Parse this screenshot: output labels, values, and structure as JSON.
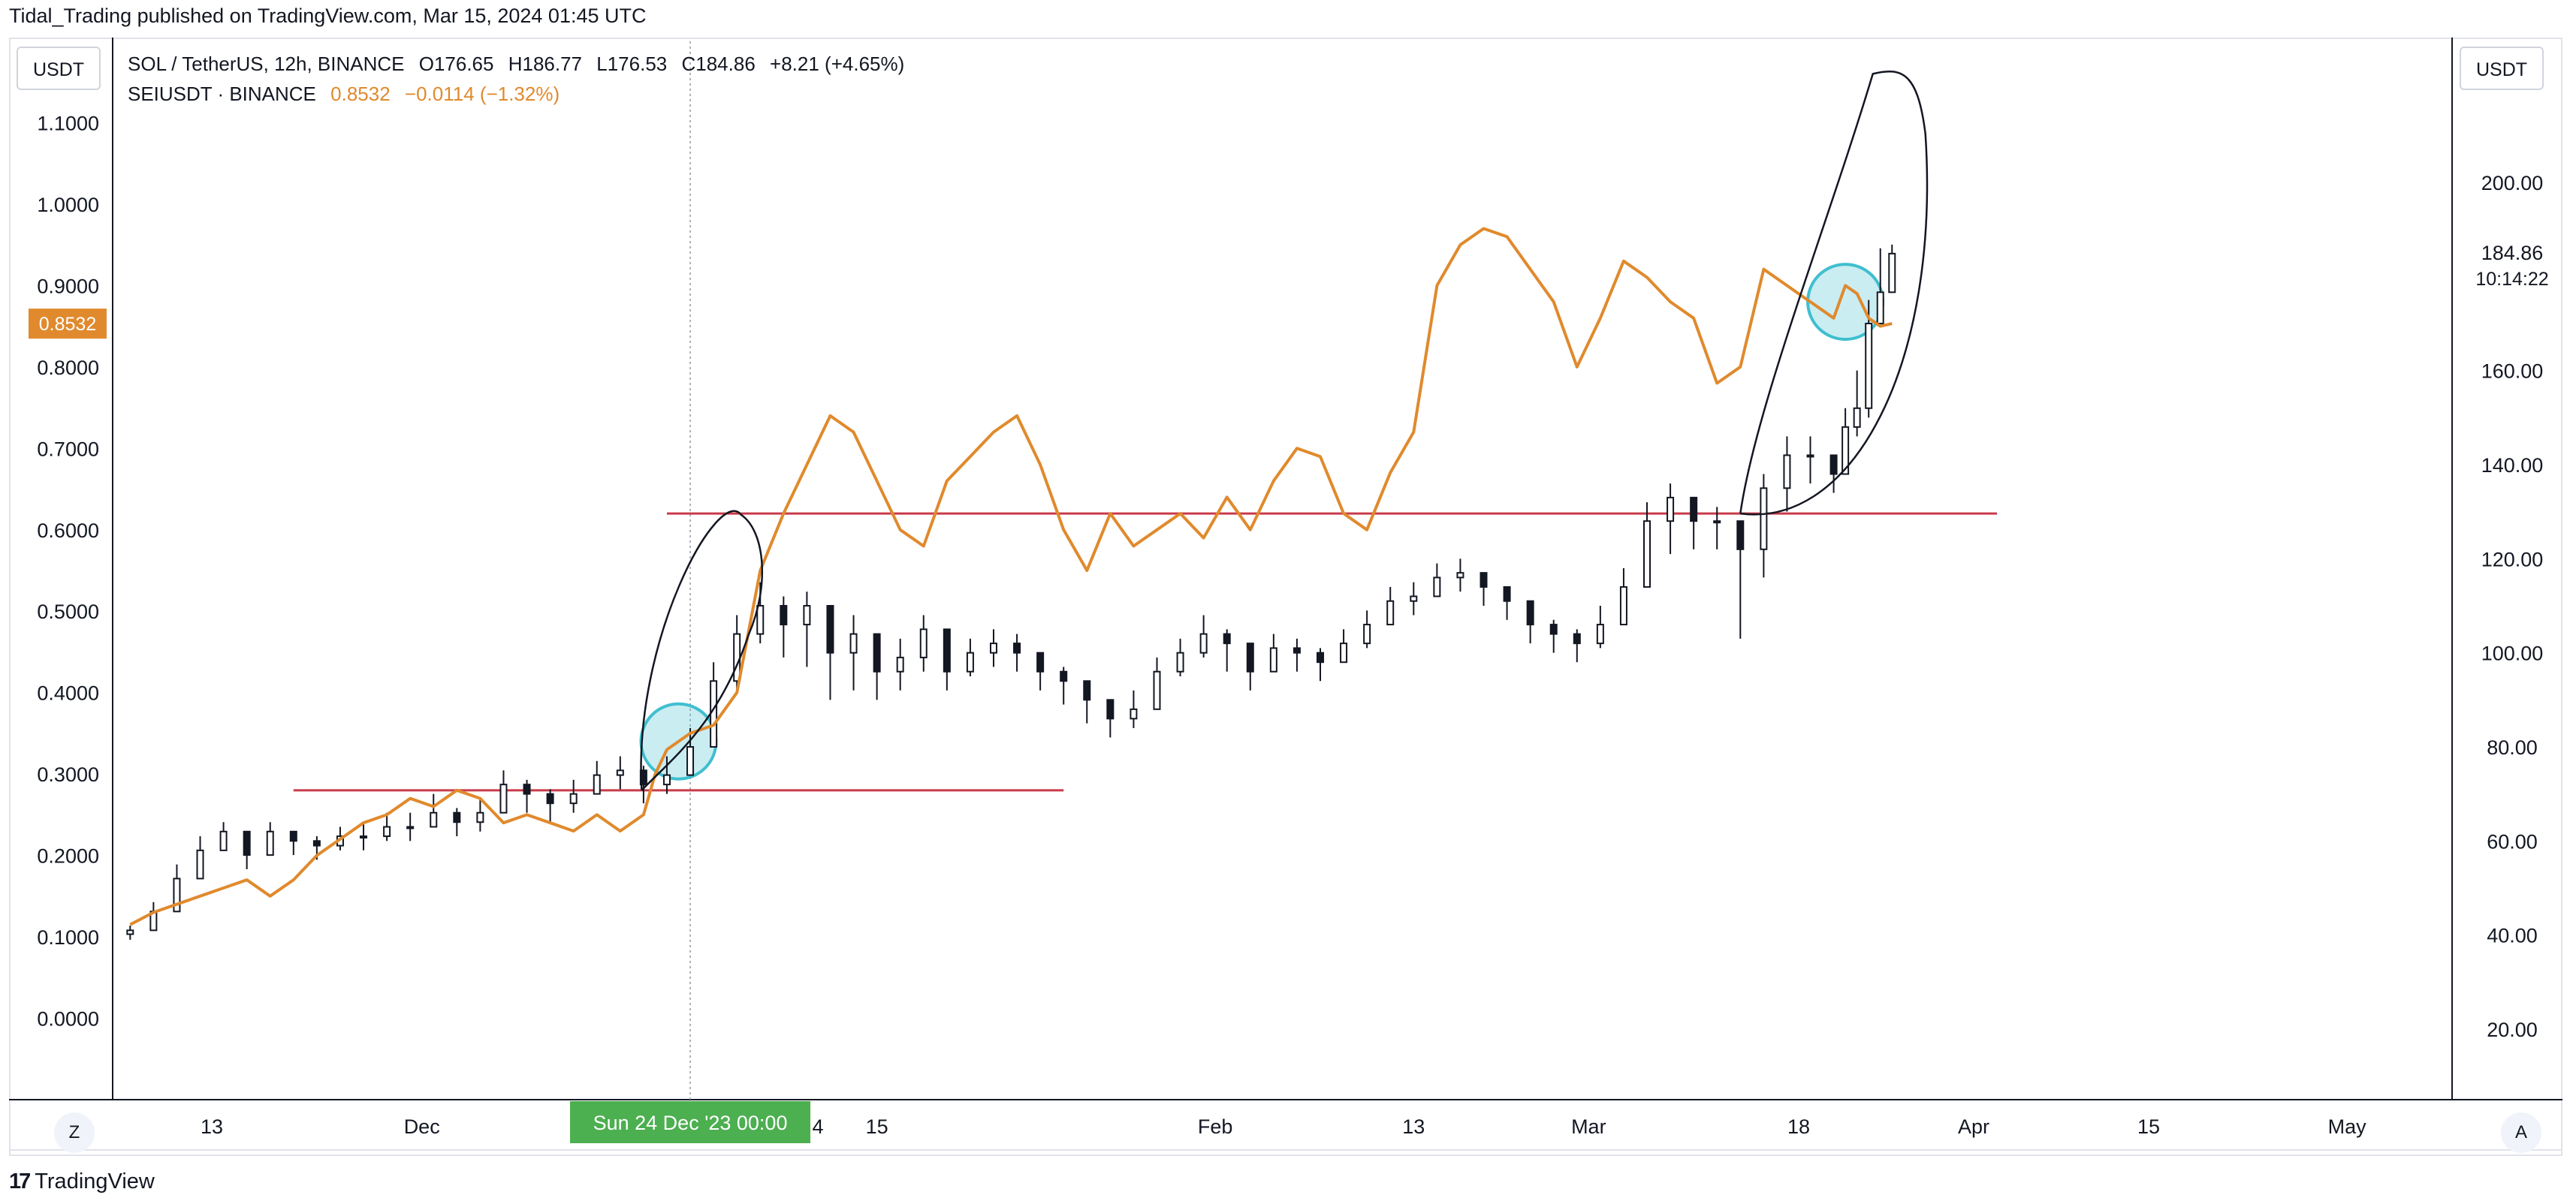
{
  "header": {
    "published_line": "Tidal_Trading published on TradingView.com, Mar 15, 2024 01:45 UTC"
  },
  "toolbar": {
    "left_unit": "USDT",
    "right_unit": "USDT",
    "z_button": "Z",
    "a_button": "A"
  },
  "legend": {
    "main": {
      "symbol": "SOL / TetherUS, 12h, BINANCE",
      "open": "O176.65",
      "high": "H186.77",
      "low": "L176.53",
      "close": "C184.86",
      "change": "+8.21 (+4.65%)"
    },
    "compare": {
      "symbol": "SEIUSDT · BINANCE",
      "value": "0.8532",
      "change": "−0.0114 (−1.32%)"
    }
  },
  "footer": {
    "brand": "TradingView",
    "brand_glyph": "17"
  },
  "colors": {
    "sei_line": "#e08a2d",
    "candle": "#131722",
    "support_line": "#c93b4a",
    "circle": "#3fbfcf",
    "crosshair_label": "#4caf50",
    "sei_price_label": "#e08a2d"
  },
  "chart_data": {
    "type": "line",
    "title": "",
    "left_axis": {
      "unit": "USDT",
      "ticks": [
        "0.0000",
        "0.1000",
        "0.2000",
        "0.3000",
        "0.4000",
        "0.5000",
        "0.6000",
        "0.7000",
        "0.8000",
        "0.9000",
        "1.0000",
        "1.1000"
      ],
      "tick_values": [
        0,
        0.1,
        0.2,
        0.3,
        0.4,
        0.5,
        0.6,
        0.7,
        0.8,
        0.9,
        1.0,
        1.1
      ],
      "ylim": [
        -0.1,
        1.2
      ]
    },
    "right_axis": {
      "unit": "USDT",
      "ticks": [
        "20.00",
        "40.00",
        "60.00",
        "80.00",
        "100.00",
        "120.00",
        "140.00",
        "160.00",
        "200.00"
      ],
      "tick_values": [
        20,
        40,
        60,
        80,
        100,
        120,
        140,
        160,
        200
      ],
      "ylim": [
        5,
        230
      ]
    },
    "x_axis": {
      "labels": [
        "13",
        "Dec",
        "15",
        "Feb",
        "13",
        "Mar",
        "18",
        "Apr",
        "15",
        "May"
      ],
      "label_days": [
        7,
        25,
        64,
        93,
        110,
        125,
        143,
        158,
        173,
        190
      ],
      "xlim": [
        -1.5,
        199
      ],
      "day0": "Nov 6 2023"
    },
    "crosshair": {
      "label": "Sun 24 Dec '23   00:00",
      "day": 48,
      "partial_tail": "4"
    },
    "price_labels": {
      "sei_current": "0.8532",
      "sol_current": "184.86",
      "sol_countdown": "10:14:22"
    },
    "series": [
      {
        "name": "SEIUSDT · BINANCE",
        "axis": "left",
        "x": [
          0,
          2,
          4,
          6,
          8,
          10,
          12,
          14,
          16,
          18,
          20,
          22,
          24,
          26,
          28,
          30,
          32,
          34,
          36,
          38,
          40,
          42,
          44,
          45,
          46,
          48,
          50,
          52,
          54,
          56,
          58,
          60,
          62,
          64,
          66,
          68,
          70,
          72,
          74,
          76,
          78,
          80,
          82,
          84,
          86,
          88,
          90,
          92,
          94,
          96,
          98,
          100,
          102,
          104,
          106,
          108,
          110,
          112,
          114,
          116,
          118,
          120,
          122,
          124,
          126,
          128,
          130,
          132,
          134,
          136,
          138,
          140,
          142,
          144,
          146,
          147,
          148,
          149,
          150,
          151
        ],
        "y": [
          0.115,
          0.13,
          0.14,
          0.15,
          0.16,
          0.17,
          0.15,
          0.17,
          0.2,
          0.22,
          0.24,
          0.25,
          0.27,
          0.26,
          0.28,
          0.27,
          0.24,
          0.25,
          0.24,
          0.23,
          0.25,
          0.23,
          0.25,
          0.3,
          0.33,
          0.35,
          0.36,
          0.4,
          0.55,
          0.62,
          0.68,
          0.74,
          0.72,
          0.66,
          0.6,
          0.58,
          0.66,
          0.69,
          0.72,
          0.74,
          0.68,
          0.6,
          0.55,
          0.62,
          0.58,
          0.6,
          0.62,
          0.59,
          0.64,
          0.6,
          0.66,
          0.7,
          0.69,
          0.62,
          0.6,
          0.67,
          0.72,
          0.9,
          0.95,
          0.97,
          0.96,
          0.92,
          0.88,
          0.8,
          0.86,
          0.93,
          0.91,
          0.88,
          0.86,
          0.78,
          0.8,
          0.92,
          0.9,
          0.88,
          0.86,
          0.9,
          0.89,
          0.86,
          0.85,
          0.8532
        ]
      },
      {
        "name": "SOL / TetherUS, 12h, BINANCE",
        "axis": "right",
        "type": "candlestick",
        "x": [
          0,
          2,
          4,
          6,
          8,
          10,
          12,
          14,
          16,
          18,
          20,
          22,
          24,
          26,
          28,
          30,
          32,
          34,
          36,
          38,
          40,
          42,
          44,
          46,
          48,
          50,
          52,
          54,
          56,
          58,
          60,
          62,
          64,
          66,
          68,
          70,
          72,
          74,
          76,
          78,
          80,
          82,
          84,
          86,
          88,
          90,
          92,
          94,
          96,
          98,
          100,
          102,
          104,
          106,
          108,
          110,
          112,
          114,
          116,
          118,
          120,
          122,
          124,
          126,
          128,
          130,
          132,
          134,
          136,
          138,
          140,
          142,
          144,
          146,
          147,
          148,
          149,
          150,
          151
        ],
        "close": [
          41,
          45,
          52,
          58,
          62,
          57,
          62,
          60,
          59,
          61,
          61,
          63,
          63,
          66,
          64,
          66,
          72,
          70,
          68,
          70,
          74,
          75,
          72,
          74,
          80,
          94,
          104,
          110,
          106,
          110,
          100,
          104,
          96,
          99,
          105,
          96,
          100,
          102,
          100,
          96,
          94,
          90,
          86,
          88,
          96,
          100,
          104,
          102,
          96,
          101,
          100,
          98,
          102,
          106,
          111,
          112,
          116,
          117,
          114,
          111,
          106,
          104,
          102,
          106,
          114,
          128,
          133,
          128,
          128,
          122,
          135,
          142,
          142,
          138,
          148,
          152,
          170,
          176.65,
          184.86
        ],
        "high": [
          42,
          47,
          55,
          61,
          64,
          60,
          64,
          62,
          61,
          63,
          64,
          66,
          66,
          70,
          67,
          69,
          75,
          73,
          71,
          73,
          77,
          78,
          76,
          78,
          84,
          98,
          108,
          115,
          112,
          113,
          103,
          108,
          100,
          103,
          108,
          100,
          103,
          105,
          104,
          99,
          97,
          93,
          90,
          92,
          99,
          103,
          108,
          105,
          99,
          104,
          103,
          101,
          105,
          109,
          114,
          115,
          119,
          120,
          117,
          114,
          109,
          107,
          105,
          110,
          118,
          132,
          136,
          131,
          131,
          126,
          138,
          146,
          146,
          142,
          152,
          160,
          175,
          186,
          186.77
        ],
        "low": [
          39,
          42,
          49,
          55,
          58,
          54,
          58,
          57,
          56,
          58,
          58,
          60,
          60,
          63,
          61,
          62,
          68,
          66,
          64,
          66,
          70,
          71,
          68,
          70,
          76,
          80,
          92,
          102,
          99,
          97,
          90,
          92,
          90,
          92,
          96,
          92,
          95,
          97,
          96,
          92,
          89,
          85,
          82,
          84,
          89,
          95,
          99,
          96,
          92,
          96,
          96,
          94,
          98,
          101,
          106,
          108,
          112,
          113,
          110,
          107,
          102,
          100,
          98,
          101,
          108,
          114,
          121,
          122,
          122,
          103,
          116,
          130,
          136,
          134,
          140,
          146,
          150,
          170,
          176.53
        ]
      }
    ],
    "annotations": [
      {
        "type": "hline",
        "series_axis": "left",
        "y": 0.28,
        "x0": 14,
        "x1": 80
      },
      {
        "type": "hline",
        "series_axis": "left",
        "y": 0.62,
        "x0": 46,
        "x1": 160
      },
      {
        "type": "circle",
        "series_axis": "left",
        "x": 47,
        "y": 0.34
      },
      {
        "type": "circle",
        "series_axis": "left",
        "x": 147,
        "y": 0.88
      }
    ]
  }
}
